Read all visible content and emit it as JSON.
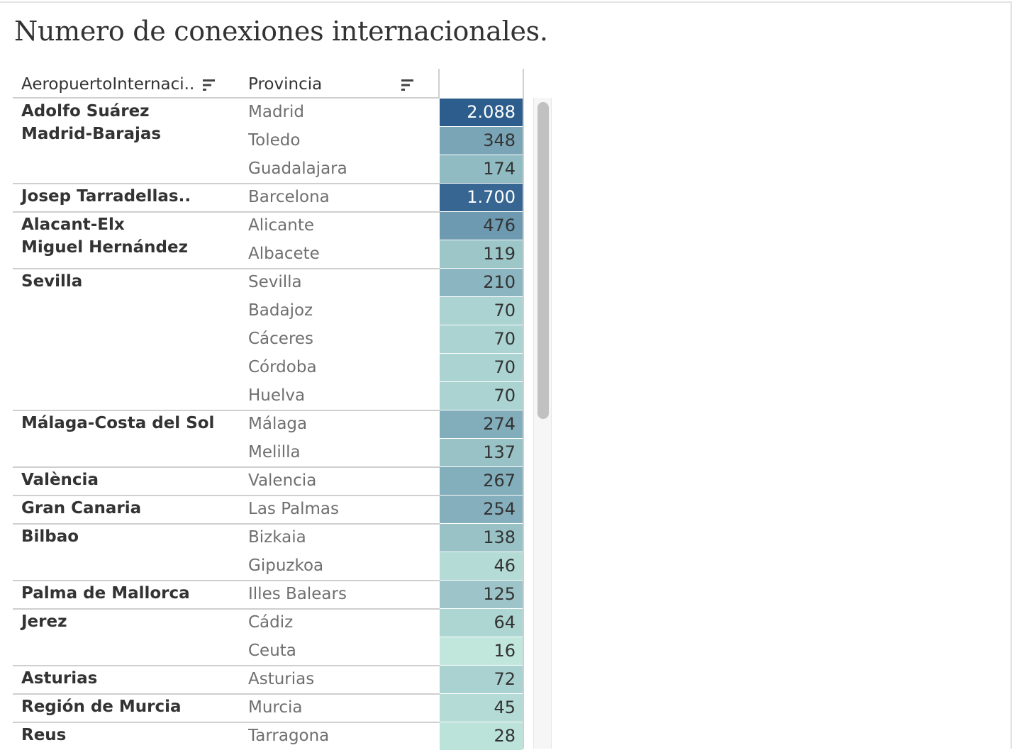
{
  "title": "Numero de conexiones internacionales.",
  "headers": {
    "airport": "AeropuertoInternaci..",
    "province": "Provincia",
    "sort_airport_icon": "sort-descending-icon",
    "sort_province_icon": "sort-descending-icon"
  },
  "colors": {
    "scale_low": "#c1e7dd",
    "scale_high": "#2c5d8c",
    "text_dark": "#333333",
    "text_light": "#ffffff"
  },
  "chart_data": {
    "type": "table",
    "title": "Numero de conexiones internacionales.",
    "columns": [
      "AeropuertoInternaci..",
      "Provincia",
      ""
    ],
    "groups": [
      {
        "airport": [
          "Adolfo Suárez",
          "Madrid-Barajas"
        ],
        "rows": [
          {
            "province": "Madrid",
            "value": 2088,
            "label": "2.088"
          },
          {
            "province": "Toledo",
            "value": 348,
            "label": "348"
          },
          {
            "province": "Guadalajara",
            "value": 174,
            "label": "174"
          }
        ]
      },
      {
        "airport": [
          "Josep Tarradellas.."
        ],
        "rows": [
          {
            "province": "Barcelona",
            "value": 1700,
            "label": "1.700"
          }
        ]
      },
      {
        "airport": [
          "Alacant-Elx",
          "Miguel Hernández"
        ],
        "rows": [
          {
            "province": "Alicante",
            "value": 476,
            "label": "476"
          },
          {
            "province": "Albacete",
            "value": 119,
            "label": "119"
          }
        ]
      },
      {
        "airport": [
          "Sevilla"
        ],
        "rows": [
          {
            "province": "Sevilla",
            "value": 210,
            "label": "210"
          },
          {
            "province": "Badajoz",
            "value": 70,
            "label": "70"
          },
          {
            "province": "Cáceres",
            "value": 70,
            "label": "70"
          },
          {
            "province": "Córdoba",
            "value": 70,
            "label": "70"
          },
          {
            "province": "Huelva",
            "value": 70,
            "label": "70"
          }
        ]
      },
      {
        "airport": [
          "Málaga-Costa del Sol"
        ],
        "rows": [
          {
            "province": "Málaga",
            "value": 274,
            "label": "274"
          },
          {
            "province": "Melilla",
            "value": 137,
            "label": "137"
          }
        ]
      },
      {
        "airport": [
          "València"
        ],
        "rows": [
          {
            "province": "Valencia",
            "value": 267,
            "label": "267"
          }
        ]
      },
      {
        "airport": [
          "Gran Canaria"
        ],
        "rows": [
          {
            "province": "Las Palmas",
            "value": 254,
            "label": "254"
          }
        ]
      },
      {
        "airport": [
          "Bilbao"
        ],
        "rows": [
          {
            "province": "Bizkaia",
            "value": 138,
            "label": "138"
          },
          {
            "province": "Gipuzkoa",
            "value": 46,
            "label": "46"
          }
        ]
      },
      {
        "airport": [
          "Palma de Mallorca"
        ],
        "rows": [
          {
            "province": "Illes Balears",
            "value": 125,
            "label": "125"
          }
        ]
      },
      {
        "airport": [
          "Jerez"
        ],
        "rows": [
          {
            "province": "Cádiz",
            "value": 64,
            "label": "64"
          },
          {
            "province": "Ceuta",
            "value": 16,
            "label": "16"
          }
        ]
      },
      {
        "airport": [
          "Asturias"
        ],
        "rows": [
          {
            "province": "Asturias",
            "value": 72,
            "label": "72"
          }
        ]
      },
      {
        "airport": [
          "Región de Murcia"
        ],
        "rows": [
          {
            "province": "Murcia",
            "value": 45,
            "label": "45"
          }
        ]
      },
      {
        "airport": [
          "Reus"
        ],
        "rows": [
          {
            "province": "Tarragona",
            "value": 28,
            "label": "28"
          }
        ]
      }
    ]
  }
}
